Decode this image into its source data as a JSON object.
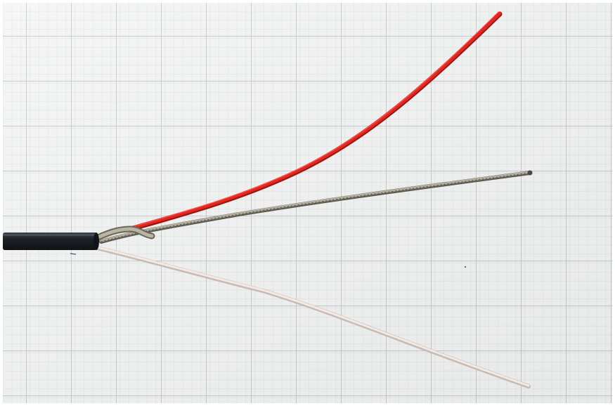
{
  "scene": {
    "subject": "stripped-cable",
    "wires": [
      {
        "name": "jacket",
        "color": "#1c2228"
      },
      {
        "name": "red-insulated-wire",
        "color": "#e0231e"
      },
      {
        "name": "braided-shield-wire",
        "color": "#8a8676"
      },
      {
        "name": "clear-insulated-wire",
        "color": "#e6d7d2"
      }
    ],
    "paper": {
      "background": "#f2f3f2",
      "minor_grid_color": "#c8ccd0",
      "major_grid_color": "#9aa1a8"
    }
  }
}
